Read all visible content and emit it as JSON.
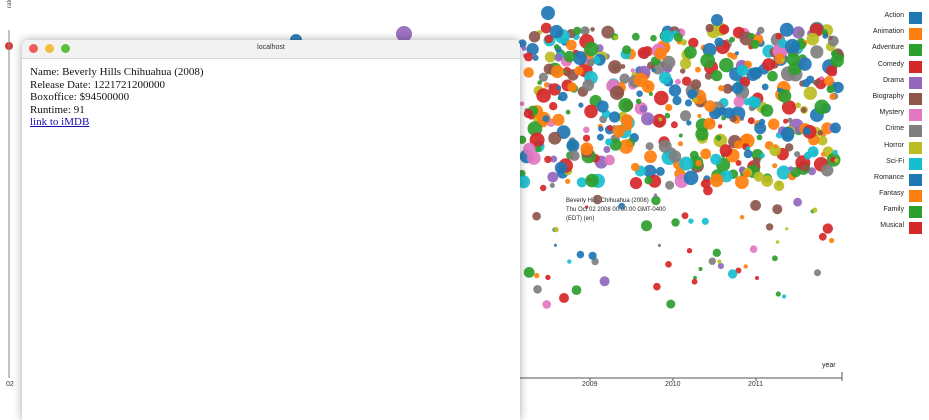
{
  "chart": {
    "y_axis_title": "rate",
    "x_axis_title": "year",
    "x_ticks": [
      "2009",
      "2010",
      "2011"
    ],
    "left_partial_tick": "02",
    "legend": [
      {
        "label": "Action",
        "color": "#1f77b4"
      },
      {
        "label": "Animation",
        "color": "#ff7f0e"
      },
      {
        "label": "Adventure",
        "color": "#2ca02c"
      },
      {
        "label": "Comedy",
        "color": "#d62728"
      },
      {
        "label": "Drama",
        "color": "#9467bd"
      },
      {
        "label": "Biography",
        "color": "#8c564b"
      },
      {
        "label": "Mystery",
        "color": "#e377c2"
      },
      {
        "label": "Crime",
        "color": "#7f7f7f"
      },
      {
        "label": "Horror",
        "color": "#bcbd22"
      },
      {
        "label": "Sci-Fi",
        "color": "#17becf"
      },
      {
        "label": "Romance",
        "color": "#1f77b4"
      },
      {
        "label": "Fantasy",
        "color": "#ff7f0e"
      },
      {
        "label": "Family",
        "color": "#2ca02c"
      },
      {
        "label": "Musical",
        "color": "#d62728"
      }
    ],
    "tooltip_lines": [
      "Beverly Hills Chihuahua (2008)",
      "Thu Oct 02 2008 00:00:00 GMT-0400",
      "(EDT)  (en)"
    ]
  },
  "popup": {
    "window_title": "localhost",
    "name_line": "Name: Beverly Hills Chihuahua (2008)",
    "release_line": "Release Date: 1221721200000",
    "boxoffice_line": "Boxoffice: $94500000",
    "runtime_line": "Runtime: 91",
    "imdb_link": "link to iMDB"
  }
}
